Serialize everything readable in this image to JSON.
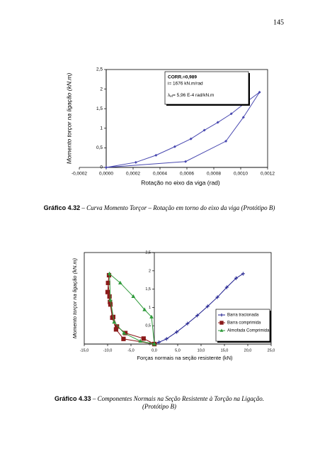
{
  "page_number": "145",
  "chart_data": [
    {
      "type": "line",
      "marker": "diamond",
      "color": "#4848b0",
      "x": [
        0,
        0.00059,
        0.00089,
        0.00102,
        0.00114,
        0.00103,
        0.00093,
        0.00083,
        0.00073,
        0.00063,
        0.00051,
        0.00037,
        0.00022,
        0
      ],
      "values": [
        0,
        0.15,
        0.67,
        1.28,
        1.92,
        1.64,
        1.37,
        1.15,
        0.95,
        0.73,
        0.53,
        0.31,
        0.13,
        0
      ],
      "xlim": [
        -0.0002,
        0.0012
      ],
      "xticks": [
        {
          "value": -0.0002,
          "label": "-0,0002"
        },
        {
          "value": 0,
          "label": "0,0000"
        },
        {
          "value": 0.0002,
          "label": "0,0002"
        },
        {
          "value": 0.0004,
          "label": "0,0004"
        },
        {
          "value": 0.0006,
          "label": "0,0006"
        },
        {
          "value": 0.0008,
          "label": "0,0008"
        },
        {
          "value": 0.001,
          "label": "0,0010"
        },
        {
          "value": 0.0012,
          "label": "0,0012"
        }
      ],
      "ylim": [
        0,
        2.5
      ],
      "yticks": [
        0,
        {
          "value": 0.5,
          "label": "0,5"
        },
        1,
        {
          "value": 1.5,
          "label": "1,5"
        },
        2,
        {
          "value": 2.5,
          "label": "2,5"
        }
      ],
      "xlabel": "Rotação no eixo da viga (rad)",
      "ylabel": "Momento torçor na ligação (kN.m)",
      "annotation": {
        "corr": "CORR.=0,989",
        "stiffness": "i= 1676 kN.m/rad",
        "lambda": "λ",
        "lambda_sub": "ef",
        "lambda_text": "= 5,96 E-4 rad/kN.m"
      },
      "caption": {
        "label": "Gráfico 4.32",
        "text": [
          "– Curva Momento Torçor – Rotação em torno do eixo da viga (Protótipo B)"
        ]
      }
    },
    {
      "type": "line",
      "legend": "lower right",
      "series": [
        {
          "name": "Barra tracionada",
          "color": "#1a1a8c",
          "marker": "plus",
          "x": [
            0,
            1,
            2.6,
            4.8,
            7.1,
            9.2,
            11.4,
            13.5,
            15.5,
            17.5,
            19
          ],
          "values": [
            0,
            0.05,
            0.14,
            0.33,
            0.56,
            0.78,
            1.03,
            1.28,
            1.55,
            1.8,
            1.92
          ]
        },
        {
          "name": "Barra comprimida",
          "color": "#8b1a1a",
          "marker": "square",
          "x": [
            0,
            -2.3,
            -6.2,
            -8,
            -8.8,
            -9.4,
            -9.6,
            -9.9,
            -9.7,
            -10,
            -9.5,
            -9,
            -8.2,
            -6.6,
            0
          ],
          "values": [
            0,
            0.15,
            0.3,
            0.48,
            0.74,
            1.08,
            1.3,
            1.67,
            1.88,
            1.42,
            1.15,
            0.72,
            0.4,
            0.14,
            0
          ]
        },
        {
          "name": "Almofada Comprimida",
          "color": "#2e9a3a",
          "marker": "triangle",
          "x": [
            0,
            -0.6,
            -2.1,
            -4.5,
            -7.3,
            -9.6,
            -9.4,
            -8.6,
            -6.5,
            -3,
            0
          ],
          "values": [
            0,
            0.74,
            0.94,
            1.3,
            1.67,
            1.92,
            1.2,
            0.6,
            0.3,
            0.08,
            0
          ]
        }
      ],
      "xlim": [
        -15,
        25
      ],
      "xticks": [
        {
          "value": -15,
          "label": "-15,0"
        },
        {
          "value": -10,
          "label": "-10,0"
        },
        {
          "value": -5,
          "label": "-5,0"
        },
        {
          "value": 0,
          "label": "0,0"
        },
        {
          "value": 5,
          "label": "5,0"
        },
        {
          "value": 10,
          "label": "10,0"
        },
        {
          "value": 15,
          "label": "15,0"
        },
        {
          "value": 20,
          "label": "20,0"
        },
        {
          "value": 25,
          "label": "25,0"
        }
      ],
      "ylim": [
        0,
        2.5
      ],
      "yticks": [
        0,
        {
          "value": 0.5,
          "label": "0,5"
        },
        1,
        {
          "value": 1.5,
          "label": "1,5"
        },
        2,
        {
          "value": 2.5,
          "label": "2,5"
        }
      ],
      "xlabel": "Forças normais na seção resistente (kN)",
      "ylabel": "Momento torçor na ligação (kN.m)",
      "caption": {
        "label": "Gráfico 4.33",
        "text": [
          "– Componentes Normais na Seção Resistente à Torção na Ligação.",
          "(Protótipo B)"
        ]
      }
    }
  ]
}
